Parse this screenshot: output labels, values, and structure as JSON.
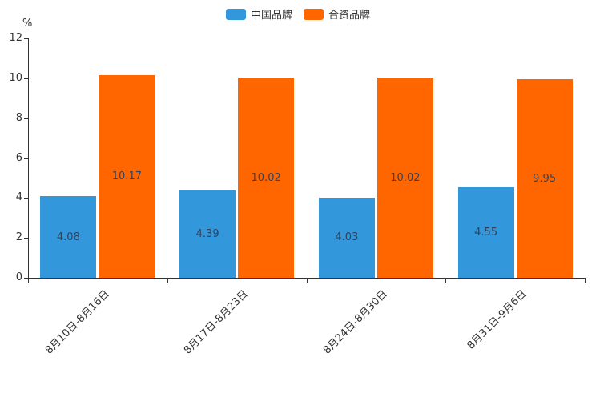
{
  "chart_data": {
    "type": "bar",
    "title": "",
    "categories": [
      "8月10日-8月16日",
      "8月17日-8月23日",
      "8月24日-8月30日",
      "8月31日-9月6日"
    ],
    "series": [
      {
        "name": "中国品牌",
        "color": "#3398db",
        "values": [
          4.08,
          4.39,
          4.03,
          4.55
        ]
      },
      {
        "name": "合资品牌",
        "color": "#ff6600",
        "values": [
          10.17,
          10.02,
          10.02,
          9.95
        ]
      }
    ],
    "value_labels": {
      "series_0": [
        "4.08",
        "4.39",
        "4.03",
        "4.55"
      ],
      "series_1": [
        "10.17",
        "10.02",
        "10.02",
        "9.95"
      ]
    },
    "ylabel": "%",
    "ylim": [
      0,
      12
    ],
    "yticks": [
      0,
      2,
      4,
      6,
      8,
      10,
      12
    ],
    "legend_position": "top",
    "grid": false,
    "axis_color": "#333333",
    "bar_label_color": "#33425b"
  }
}
